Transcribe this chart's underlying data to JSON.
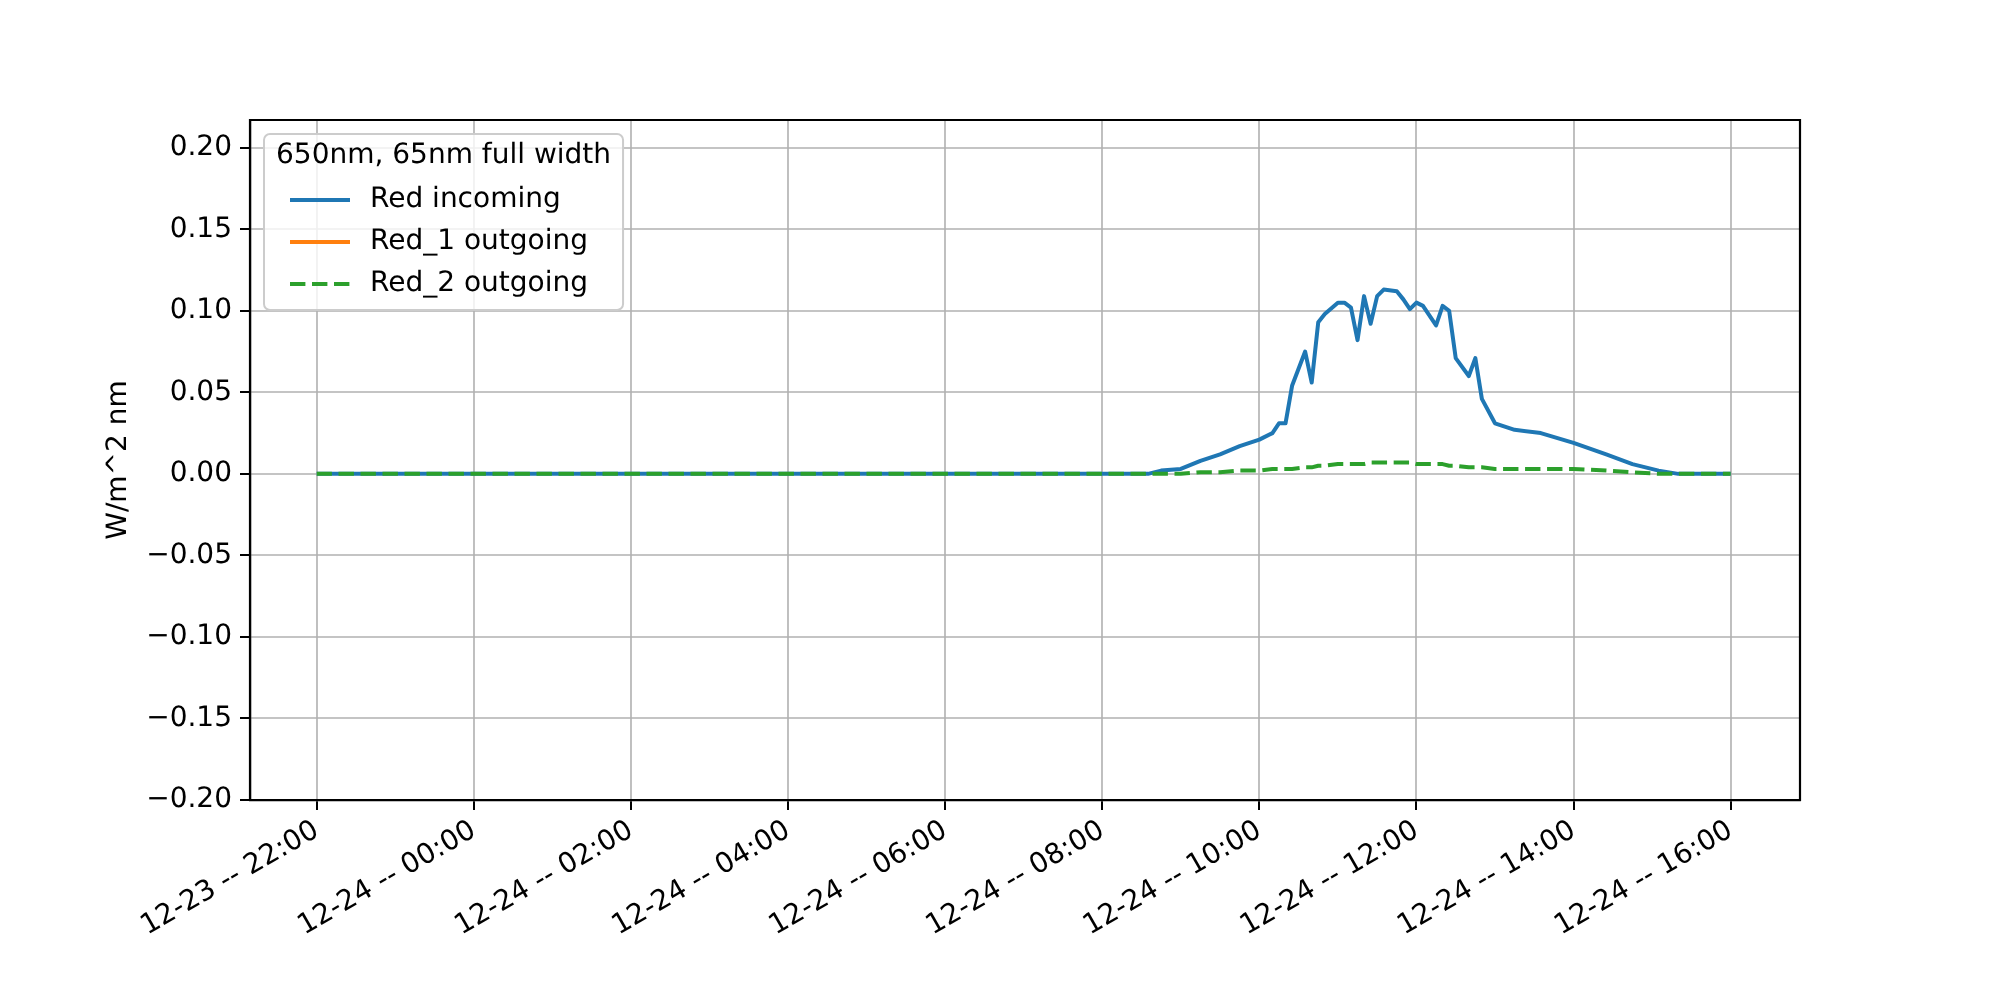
{
  "chart_data": {
    "type": "line",
    "ylabel": "W/m^2 nm",
    "legend_title": "650nm, 65nm full width",
    "x": [
      "--12-23T22:00",
      "--12-24T00:00",
      "--12-24T02:00",
      "--12-24T04:00",
      "--12-24T06:00",
      "--12-24T08:00",
      "--12-24T08:35",
      "--12-24T08:45",
      "--12-24T09:00",
      "--12-24T09:15",
      "--12-24T09:30",
      "--12-24T09:45",
      "--12-24T10:00",
      "--12-24T10:10",
      "--12-24T10:15",
      "--12-24T10:20",
      "--12-24T10:25",
      "--12-24T10:35",
      "--12-24T10:40",
      "--12-24T10:45",
      "--12-24T10:50",
      "--12-24T11:00",
      "--12-24T11:05",
      "--12-24T11:10",
      "--12-24T11:15",
      "--12-24T11:20",
      "--12-24T11:25",
      "--12-24T11:30",
      "--12-24T11:35",
      "--12-24T11:45",
      "--12-24T11:50",
      "--12-24T11:55",
      "--12-24T12:00",
      "--12-24T12:05",
      "--12-24T12:15",
      "--12-24T12:20",
      "--12-24T12:25",
      "--12-24T12:30",
      "--12-24T12:40",
      "--12-24T12:45",
      "--12-24T12:50",
      "--12-24T13:00",
      "--12-24T13:15",
      "--12-24T13:35",
      "--12-24T14:00",
      "--12-24T14:25",
      "--12-24T14:45",
      "--12-24T15:05",
      "--12-24T15:20",
      "--12-24T16:00"
    ],
    "series": [
      {
        "name": "Red incoming",
        "color": "#1f77b4",
        "values": [
          0,
          0,
          0,
          0,
          0,
          0,
          0,
          0.002,
          0.003,
          0.008,
          0.012,
          0.017,
          0.021,
          0.025,
          0.031,
          0.031,
          0.054,
          0.075,
          0.056,
          0.093,
          0.098,
          0.105,
          0.105,
          0.102,
          0.082,
          0.109,
          0.092,
          0.109,
          0.113,
          0.112,
          0.107,
          0.101,
          0.105,
          0.103,
          0.091,
          0.103,
          0.1,
          0.071,
          0.06,
          0.071,
          0.046,
          0.031,
          0.027,
          0.025,
          0.019,
          0.012,
          0.006,
          0.002,
          0,
          0
        ]
      },
      {
        "name": "Red_1 outgoing",
        "color": "#ff7f0e",
        "values": [
          null,
          null,
          null,
          null,
          null,
          null,
          null,
          null,
          null,
          null,
          null,
          null,
          null,
          null,
          null,
          null,
          null,
          null,
          null,
          null,
          null,
          null,
          null,
          null,
          null,
          null,
          null,
          null,
          null,
          null,
          null,
          null,
          null,
          null,
          null,
          null,
          null,
          null,
          null,
          null,
          null,
          null,
          null,
          null,
          null,
          null,
          null,
          null,
          null,
          null
        ]
      },
      {
        "name": "Red_2 outgoing",
        "color": "#2ca02c",
        "line_style": "dashed",
        "values": [
          0,
          0,
          0,
          0,
          0,
          0,
          0,
          0,
          0,
          0.001,
          0.001,
          0.002,
          0.002,
          0.003,
          0.003,
          0.003,
          0.003,
          0.004,
          0.004,
          0.005,
          0.005,
          0.006,
          0.006,
          0.006,
          0.006,
          0.006,
          0.007,
          0.007,
          0.007,
          0.007,
          0.007,
          0.007,
          0.006,
          0.006,
          0.006,
          0.006,
          0.005,
          0.005,
          0.004,
          0.004,
          0.004,
          0.003,
          0.003,
          0.003,
          0.003,
          0.002,
          0.001,
          0,
          0,
          0
        ]
      }
    ],
    "xlim": [
      "--12-23T21:09",
      "--12-24T16:53"
    ],
    "xticks": [
      {
        "value": "--12-23T22:00",
        "label": "12-23 -- 22:00"
      },
      {
        "value": "--12-24T00:00",
        "label": "12-24 -- 00:00"
      },
      {
        "value": "--12-24T02:00",
        "label": "12-24 -- 02:00"
      },
      {
        "value": "--12-24T04:00",
        "label": "12-24 -- 04:00"
      },
      {
        "value": "--12-24T06:00",
        "label": "12-24 -- 06:00"
      },
      {
        "value": "--12-24T08:00",
        "label": "12-24 -- 08:00"
      },
      {
        "value": "--12-24T10:00",
        "label": "12-24 -- 10:00"
      },
      {
        "value": "--12-24T12:00",
        "label": "12-24 -- 12:00"
      },
      {
        "value": "--12-24T14:00",
        "label": "12-24 -- 14:00"
      },
      {
        "value": "--12-24T16:00",
        "label": "12-24 -- 16:00"
      }
    ],
    "ylim": [
      -0.2,
      0.217
    ],
    "yticks": [
      {
        "value": -0.2,
        "label": "−0.20"
      },
      {
        "value": -0.15,
        "label": "−0.15"
      },
      {
        "value": -0.1,
        "label": "−0.10"
      },
      {
        "value": -0.05,
        "label": "−0.05"
      },
      {
        "value": 0,
        "label": "0.00"
      },
      {
        "value": 0.05,
        "label": "0.05"
      },
      {
        "value": 0.1,
        "label": "0.10"
      },
      {
        "value": 0.15,
        "label": "0.15"
      },
      {
        "value": 0.2,
        "label": "0.20"
      }
    ],
    "grid": true,
    "legend": "top left",
    "marker": "none",
    "line_style": "solid"
  }
}
